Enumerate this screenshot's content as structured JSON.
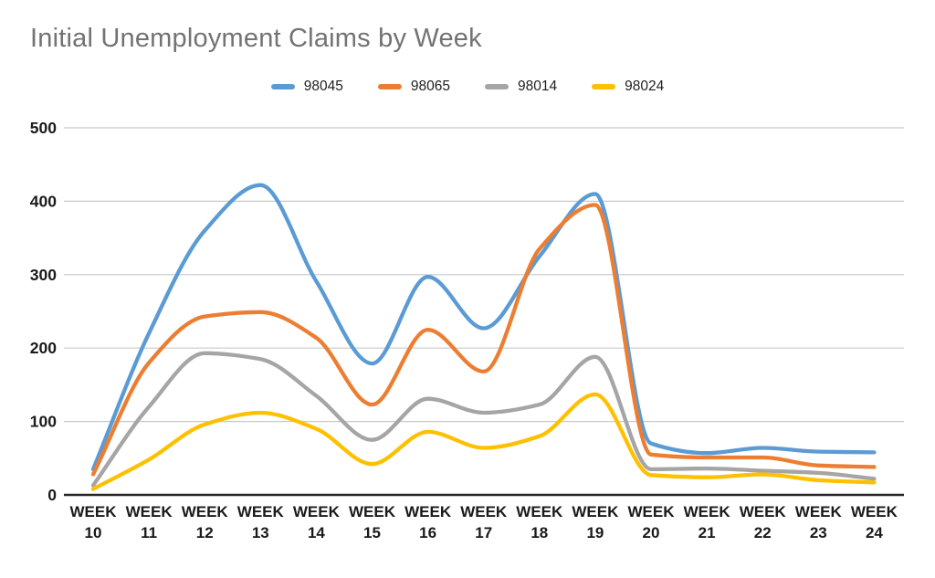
{
  "title": "Initial Unemployment Claims by Week",
  "legend": {
    "items": [
      {
        "label": "98045",
        "color": "#5B9BD5"
      },
      {
        "label": "98065",
        "color": "#ED7D31"
      },
      {
        "label": "98014",
        "color": "#A5A5A5"
      },
      {
        "label": "98024",
        "color": "#FFC000"
      }
    ]
  },
  "colors": {
    "title_text": "#737373",
    "tick_text": "#1a1a1a",
    "gridline": "#C9C9C9",
    "axis_line": "#262626",
    "background": "#ffffff"
  },
  "chart_data": {
    "type": "line",
    "title": "Initial Unemployment Claims by Week",
    "categories": [
      "WEEK 10",
      "WEEK 11",
      "WEEK 12",
      "WEEK 13",
      "WEEK 14",
      "WEEK 15",
      "WEEK 16",
      "WEEK 17",
      "WEEK 18",
      "WEEK 19",
      "WEEK 20",
      "WEEK 21",
      "WEEK 22",
      "WEEK 23",
      "WEEK 24"
    ],
    "series": [
      {
        "name": "98045",
        "color": "#5B9BD5",
        "values": [
          35,
          220,
          360,
          422,
          291,
          179,
          297,
          227,
          325,
          410,
          70,
          57,
          64,
          59,
          58
        ]
      },
      {
        "name": "98065",
        "color": "#ED7D31",
        "values": [
          28,
          180,
          243,
          249,
          214,
          123,
          225,
          168,
          335,
          395,
          55,
          51,
          51,
          40,
          38
        ]
      },
      {
        "name": "98014",
        "color": "#A5A5A5",
        "values": [
          13,
          120,
          193,
          185,
          135,
          75,
          131,
          112,
          123,
          188,
          35,
          36,
          33,
          30,
          22
        ]
      },
      {
        "name": "98024",
        "color": "#FFC000",
        "values": [
          8,
          48,
          96,
          112,
          90,
          42,
          86,
          64,
          80,
          137,
          27,
          24,
          28,
          20,
          17
        ]
      }
    ],
    "xlabel": "",
    "ylabel": "",
    "ylim": [
      0,
      500
    ],
    "yticks": [
      0,
      100,
      200,
      300,
      400,
      500
    ],
    "grid": true,
    "legend_position": "top",
    "line_style": "smooth"
  }
}
